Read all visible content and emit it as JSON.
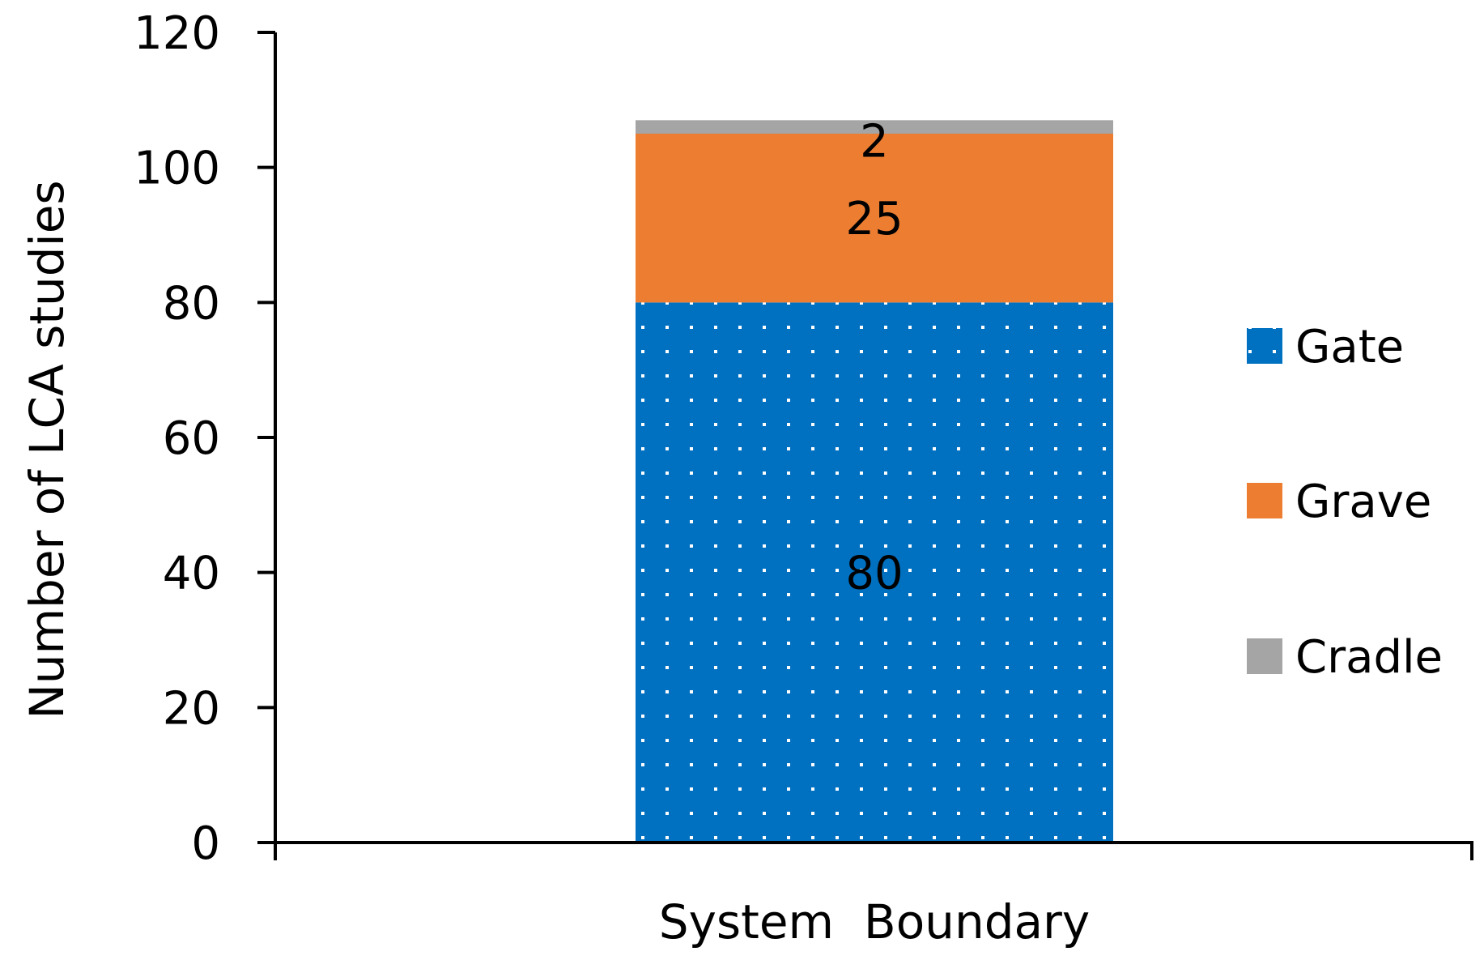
{
  "chart_data": {
    "type": "bar",
    "stacked": true,
    "categories": [
      ""
    ],
    "series": [
      {
        "name": "Gate",
        "values": [
          80
        ],
        "color": "#0070c0",
        "pattern": "white-dots"
      },
      {
        "name": "Grave",
        "values": [
          25
        ],
        "color": "#ed7d31"
      },
      {
        "name": "Cradle",
        "values": [
          2
        ],
        "color": "#a5a5a5"
      }
    ],
    "data_labels": [
      "80",
      "25",
      "2"
    ],
    "title": "",
    "xlabel": "System  Boundary",
    "ylabel": "Number of LCA studies",
    "ylim": [
      0,
      120
    ],
    "yticks": [
      0,
      20,
      40,
      60,
      80,
      100,
      120
    ],
    "grid": false,
    "legend": {
      "position": "right",
      "order": [
        "Gate",
        "Grave",
        "Cradle"
      ]
    }
  }
}
